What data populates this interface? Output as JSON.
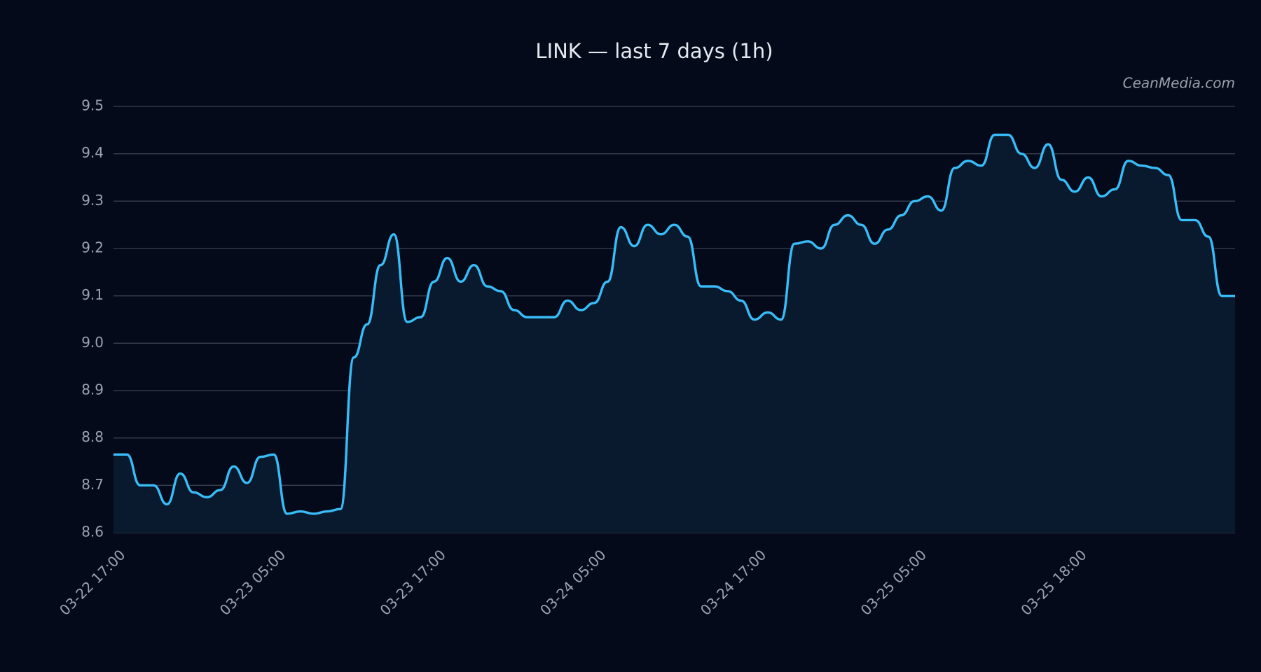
{
  "chart_data": {
    "type": "line",
    "title": "LINK — last 7 days (1h)",
    "watermark": "CeanMedia.com",
    "categories": [
      "03-22 17:00",
      null,
      null,
      null,
      null,
      null,
      null,
      null,
      null,
      null,
      null,
      null,
      "03-23 05:00",
      null,
      null,
      null,
      null,
      null,
      null,
      null,
      null,
      null,
      null,
      null,
      "03-23 17:00",
      null,
      null,
      null,
      null,
      null,
      null,
      null,
      null,
      null,
      null,
      null,
      "03-24 05:00",
      null,
      null,
      null,
      null,
      null,
      null,
      null,
      null,
      null,
      null,
      null,
      "03-24 17:00",
      null,
      null,
      null,
      null,
      null,
      null,
      null,
      null,
      null,
      null,
      null,
      "03-25 05:00",
      null,
      null,
      null,
      null,
      null,
      null,
      null,
      null,
      null,
      null,
      null,
      "03-25 18:00",
      null,
      null,
      null,
      null,
      null,
      null,
      null,
      null,
      null,
      null,
      null,
      null
    ],
    "values": [
      8.765,
      8.765,
      8.7,
      8.7,
      8.66,
      8.725,
      8.685,
      8.675,
      8.69,
      8.74,
      8.705,
      8.76,
      8.765,
      8.64,
      8.645,
      8.64,
      8.645,
      8.65,
      8.97,
      9.04,
      9.165,
      9.23,
      9.045,
      9.055,
      9.13,
      9.18,
      9.13,
      9.165,
      9.12,
      9.11,
      9.07,
      9.055,
      9.055,
      9.055,
      9.09,
      9.07,
      9.085,
      9.13,
      9.245,
      9.205,
      9.25,
      9.23,
      9.25,
      9.225,
      9.12,
      9.12,
      9.11,
      9.09,
      9.05,
      9.065,
      9.05,
      9.21,
      9.215,
      9.2,
      9.25,
      9.27,
      9.25,
      9.21,
      9.24,
      9.27,
      9.3,
      9.31,
      9.28,
      9.37,
      9.385,
      9.375,
      9.44,
      9.44,
      9.4,
      9.37,
      9.42,
      9.345,
      9.32,
      9.35,
      9.31,
      9.325,
      9.385,
      9.375,
      9.37,
      9.355,
      9.26,
      9.26,
      9.225,
      9.1,
      9.1
    ],
    "color": "#38bdf8",
    "fill_color": "#0a1a2e",
    "ylim": [
      8.6,
      9.5
    ],
    "yticks": [
      8.6,
      8.7,
      8.8,
      8.9,
      {
        "value": 9,
        "label": "9.0"
      },
      9.1,
      9.2,
      9.3,
      9.4,
      9.5
    ],
    "grid": true
  }
}
